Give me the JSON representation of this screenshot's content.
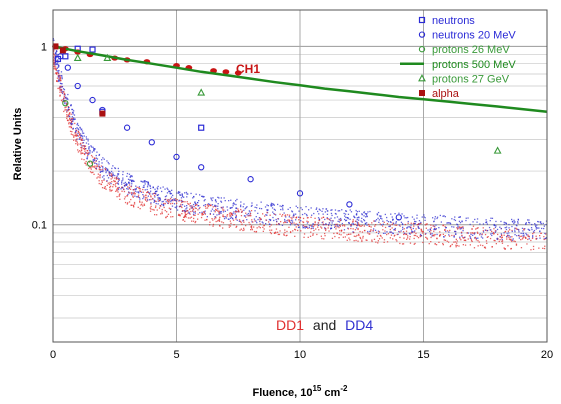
{
  "chart_data": {
    "type": "scatter",
    "xlabel": "Fluence, 10",
    "xlabel_exp1": "15",
    "xlabel_unit": " cm",
    "xlabel_exp2": "-2",
    "ylabel": "Relative Units",
    "x_scale": "linear",
    "y_scale": "log",
    "xlim": [
      0,
      20
    ],
    "ylim": [
      0.022,
      1.6
    ],
    "x_ticks": [
      "0",
      "5",
      "10",
      "15",
      "20"
    ],
    "y_ticks": [
      {
        "value": 1,
        "label": "1"
      },
      {
        "value": 0.1,
        "label": "0.1"
      }
    ],
    "grid": true,
    "legend_position": "top-right",
    "series": [
      {
        "name": "neutrons",
        "color": "#2b2bd6",
        "marker": "square-open",
        "points": [
          [
            0.2,
            0.85
          ],
          [
            0.5,
            0.88
          ],
          [
            1.0,
            0.97
          ],
          [
            1.6,
            0.96
          ],
          [
            2.0,
            0.43
          ],
          [
            6.0,
            0.35
          ]
        ]
      },
      {
        "name": "neutrons 20 MeV",
        "color": "#2b2bd6",
        "marker": "circle-open",
        "points": [
          [
            0.3,
            0.88
          ],
          [
            0.6,
            0.76
          ],
          [
            1.0,
            0.6
          ],
          [
            1.6,
            0.5
          ],
          [
            2.0,
            0.44
          ],
          [
            3.0,
            0.35
          ],
          [
            4.0,
            0.29
          ],
          [
            5.0,
            0.24
          ],
          [
            6.0,
            0.21
          ],
          [
            8.0,
            0.18
          ],
          [
            10.0,
            0.15
          ],
          [
            12.0,
            0.13
          ],
          [
            14.0,
            0.11
          ]
        ]
      },
      {
        "name": "protons 26 MeV",
        "color": "#3a9a3a",
        "marker": "circle-open",
        "points": [
          [
            0.5,
            0.48
          ],
          [
            1.5,
            0.22
          ]
        ]
      },
      {
        "name": "protons 500 MeV",
        "color": "#1f8a1f",
        "marker": "line",
        "points": [
          [
            0,
            1.0
          ],
          [
            1,
            0.94
          ],
          [
            2,
            0.89
          ],
          [
            3,
            0.84
          ],
          [
            4,
            0.8
          ],
          [
            5,
            0.76
          ],
          [
            6,
            0.72
          ],
          [
            7,
            0.69
          ],
          [
            8,
            0.66
          ],
          [
            9,
            0.63
          ],
          [
            10,
            0.605
          ],
          [
            11,
            0.58
          ],
          [
            12,
            0.56
          ],
          [
            13,
            0.54
          ],
          [
            14,
            0.52
          ],
          [
            15,
            0.505
          ],
          [
            16,
            0.49
          ],
          [
            17,
            0.475
          ],
          [
            18,
            0.46
          ],
          [
            19,
            0.445
          ],
          [
            20,
            0.43
          ]
        ]
      },
      {
        "name": "protons 27 GeV",
        "color": "#3a9a3a",
        "marker": "triangle-open",
        "points": [
          [
            1.0,
            0.86
          ],
          [
            2.2,
            0.86
          ],
          [
            6.0,
            0.55
          ],
          [
            18.0,
            0.26
          ]
        ]
      },
      {
        "name": "alpha",
        "color": "#aa1111",
        "marker": "square-filled",
        "points": [
          [
            0.1,
            1.0
          ],
          [
            0.4,
            0.95
          ],
          [
            2.0,
            0.42
          ]
        ]
      }
    ],
    "ch1_series": {
      "color": "#c81414",
      "points": [
        [
          0.1,
          1.0
        ],
        [
          0.5,
          0.97
        ],
        [
          1.0,
          0.93
        ],
        [
          1.5,
          0.9
        ],
        [
          2.5,
          0.86
        ],
        [
          3.0,
          0.84
        ],
        [
          3.8,
          0.82
        ],
        [
          5.0,
          0.78
        ],
        [
          5.5,
          0.76
        ],
        [
          6.5,
          0.73
        ],
        [
          7.0,
          0.72
        ],
        [
          7.5,
          0.71
        ]
      ]
    },
    "dd_model": {
      "description_free": true,
      "a": 0.45,
      "b": 0.18,
      "k": 2.0,
      "c0": 0.27,
      "p": 0.45,
      "q": 0.04,
      "fmax": 20
    },
    "annotations": {
      "ch1": "CH1",
      "dd1": "DD1",
      "and": "and",
      "dd4": "DD4"
    },
    "colors": {
      "grid": "#c8c8c8",
      "axis": "#555555",
      "dd1": "#e03030",
      "dd4": "#3030d0",
      "ch1_text": "#c81414"
    }
  }
}
